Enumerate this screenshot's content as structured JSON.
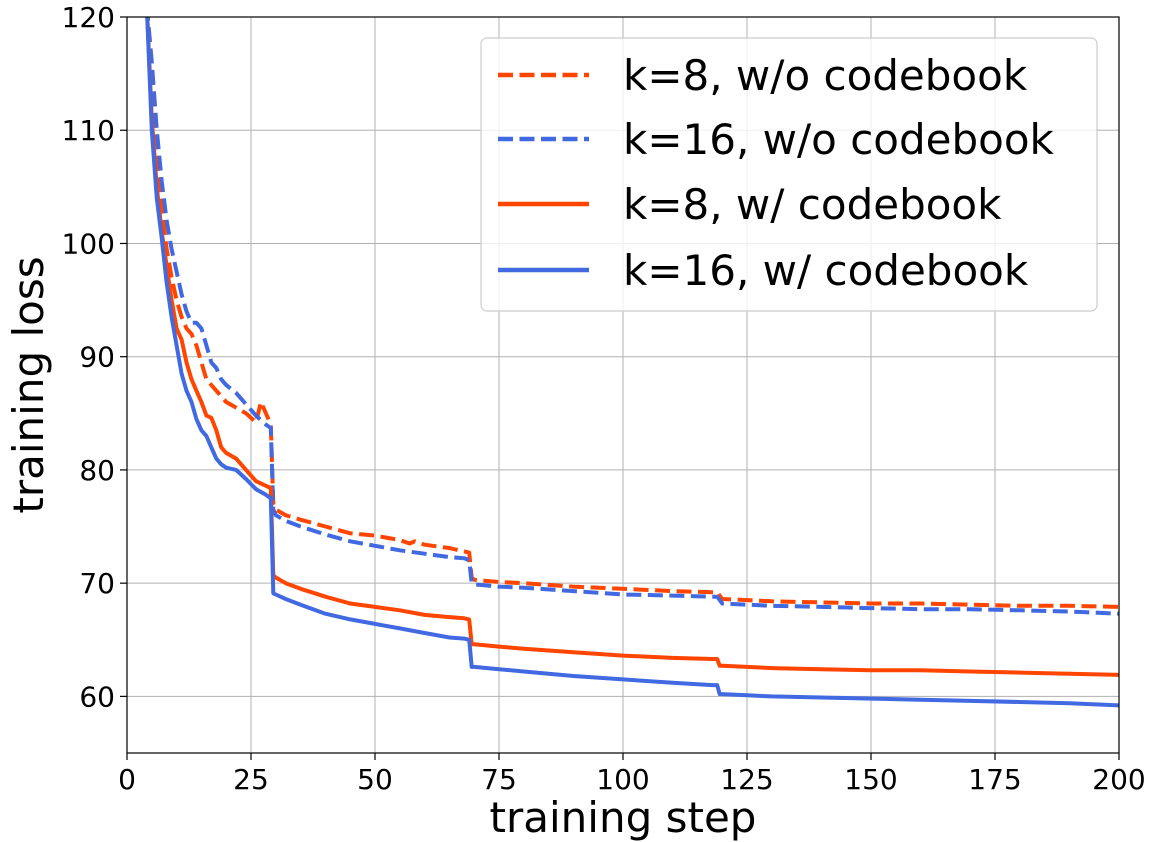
{
  "chart_data": {
    "type": "line",
    "title": "",
    "xlabel": "training step",
    "ylabel": "training loss",
    "xlim": [
      0,
      200
    ],
    "ylim": [
      55,
      120
    ],
    "grid": true,
    "legend_position": "top-right",
    "x_ticks": [
      0,
      25,
      50,
      75,
      100,
      125,
      150,
      175,
      200
    ],
    "y_ticks": [
      60,
      70,
      80,
      90,
      100,
      110,
      120
    ],
    "x_tick_labels": [
      "0",
      "25",
      "50",
      "75",
      "100",
      "125",
      "150",
      "175",
      "200"
    ],
    "y_tick_labels": [
      "60",
      "70",
      "80",
      "90",
      "100",
      "110",
      "120"
    ],
    "colors": {
      "orange": "#ff4500",
      "blue": "#4169e1",
      "grid": "#b0b0b0"
    },
    "series": [
      {
        "name": "k=8, w/o codebook",
        "color": "#ff4500",
        "dash": true,
        "x": [
          4,
          5,
          6,
          7,
          8,
          9,
          10,
          11,
          12,
          13,
          14,
          15,
          16,
          17,
          18,
          19,
          20,
          22,
          24,
          26,
          27,
          28,
          29,
          29.5,
          30,
          32,
          35,
          40,
          45,
          50,
          55,
          57,
          58,
          60,
          65,
          68,
          69,
          69.5,
          70,
          75,
          80,
          90,
          100,
          110,
          118,
          119,
          120,
          125,
          130,
          140,
          150,
          160,
          170,
          180,
          190,
          200
        ],
        "y": [
          121,
          115,
          108,
          103,
          99.5,
          97,
          95,
          93.5,
          92.5,
          92,
          91,
          89.5,
          88,
          87.5,
          87,
          86.5,
          86,
          85.5,
          85,
          84.2,
          86,
          85,
          84,
          77,
          76.5,
          76,
          75.6,
          75,
          74.4,
          74.2,
          73.8,
          73.5,
          73.7,
          73.4,
          73.1,
          72.8,
          72.7,
          70.5,
          70.3,
          70.1,
          70.0,
          69.7,
          69.5,
          69.3,
          69.2,
          69.2,
          68.6,
          68.5,
          68.4,
          68.3,
          68.2,
          68.2,
          68.1,
          68.0,
          68.0,
          67.9
        ]
      },
      {
        "name": "k=16, w/o codebook",
        "color": "#4169e1",
        "dash": true,
        "x": [
          4,
          5,
          6,
          7,
          8,
          9,
          10,
          11,
          12,
          13,
          14,
          15,
          16,
          17,
          18,
          19,
          20,
          22,
          24,
          26,
          28,
          29,
          29.5,
          30,
          32,
          35,
          40,
          45,
          50,
          55,
          60,
          65,
          68,
          69,
          69.5,
          70,
          75,
          80,
          90,
          100,
          110,
          118,
          119,
          120,
          125,
          130,
          140,
          150,
          160,
          170,
          180,
          190,
          200
        ],
        "y": [
          121,
          116,
          110,
          105.5,
          102,
          99.5,
          97.5,
          95.5,
          94,
          93,
          93,
          92.5,
          91,
          89.5,
          89,
          88,
          87.5,
          86.8,
          85.8,
          84.8,
          84,
          83.7,
          76.5,
          76,
          75.5,
          75,
          74.3,
          73.7,
          73.3,
          72.9,
          72.6,
          72.3,
          72.2,
          72.0,
          70.0,
          69.9,
          69.7,
          69.6,
          69.3,
          69.0,
          68.9,
          68.8,
          68.8,
          68.2,
          68.1,
          68.0,
          67.9,
          67.8,
          67.7,
          67.7,
          67.6,
          67.5,
          67.3
        ]
      },
      {
        "name": "k=8, w/ codebook",
        "color": "#ff4500",
        "dash": false,
        "x": [
          4,
          5,
          6,
          7,
          8,
          9,
          10,
          11,
          12,
          13,
          14,
          15,
          16,
          17,
          18,
          19,
          20,
          22,
          24,
          26,
          28,
          29,
          29.5,
          30,
          32,
          35,
          40,
          45,
          50,
          55,
          60,
          65,
          68,
          69,
          69.5,
          70,
          75,
          80,
          90,
          100,
          110,
          118,
          119,
          119.5,
          120,
          125,
          130,
          140,
          150,
          160,
          170,
          180,
          190,
          200
        ],
        "y": [
          121,
          111,
          105,
          101,
          98,
          95,
          92.5,
          91.5,
          89.5,
          88,
          87,
          86,
          84.8,
          84.6,
          83.5,
          82,
          81.5,
          81,
          80,
          79,
          78.6,
          78.4,
          70.7,
          70.5,
          70,
          69.5,
          68.8,
          68.2,
          67.9,
          67.6,
          67.2,
          67.0,
          66.9,
          66.8,
          64.6,
          64.6,
          64.4,
          64.2,
          63.9,
          63.6,
          63.4,
          63.3,
          63.3,
          62.7,
          62.7,
          62.6,
          62.5,
          62.4,
          62.3,
          62.3,
          62.2,
          62.1,
          62.0,
          61.9
        ]
      },
      {
        "name": "k=16, w/ codebook",
        "color": "#4169e1",
        "dash": false,
        "x": [
          4,
          5,
          6,
          7,
          8,
          9,
          10,
          11,
          12,
          13,
          14,
          15,
          16,
          17,
          18,
          19,
          20,
          22,
          24,
          26,
          28,
          29,
          29.5,
          30,
          32,
          35,
          40,
          45,
          50,
          55,
          60,
          65,
          68,
          69,
          69.5,
          70,
          75,
          80,
          90,
          100,
          110,
          118,
          119,
          119.5,
          120,
          125,
          130,
          140,
          150,
          160,
          170,
          180,
          190,
          200
        ],
        "y": [
          121,
          110,
          104,
          100.5,
          96.5,
          93.5,
          91,
          88.5,
          87,
          86,
          84.5,
          83.5,
          83,
          82,
          81,
          80.5,
          80.2,
          80,
          79.2,
          78.3,
          77.8,
          77.5,
          69.1,
          69,
          68.6,
          68.1,
          67.3,
          66.8,
          66.4,
          66.0,
          65.6,
          65.2,
          65.1,
          65.0,
          62.6,
          62.6,
          62.4,
          62.2,
          61.8,
          61.5,
          61.2,
          61.0,
          61.0,
          60.2,
          60.2,
          60.1,
          60.0,
          59.9,
          59.8,
          59.7,
          59.6,
          59.5,
          59.4,
          59.2
        ]
      }
    ]
  }
}
